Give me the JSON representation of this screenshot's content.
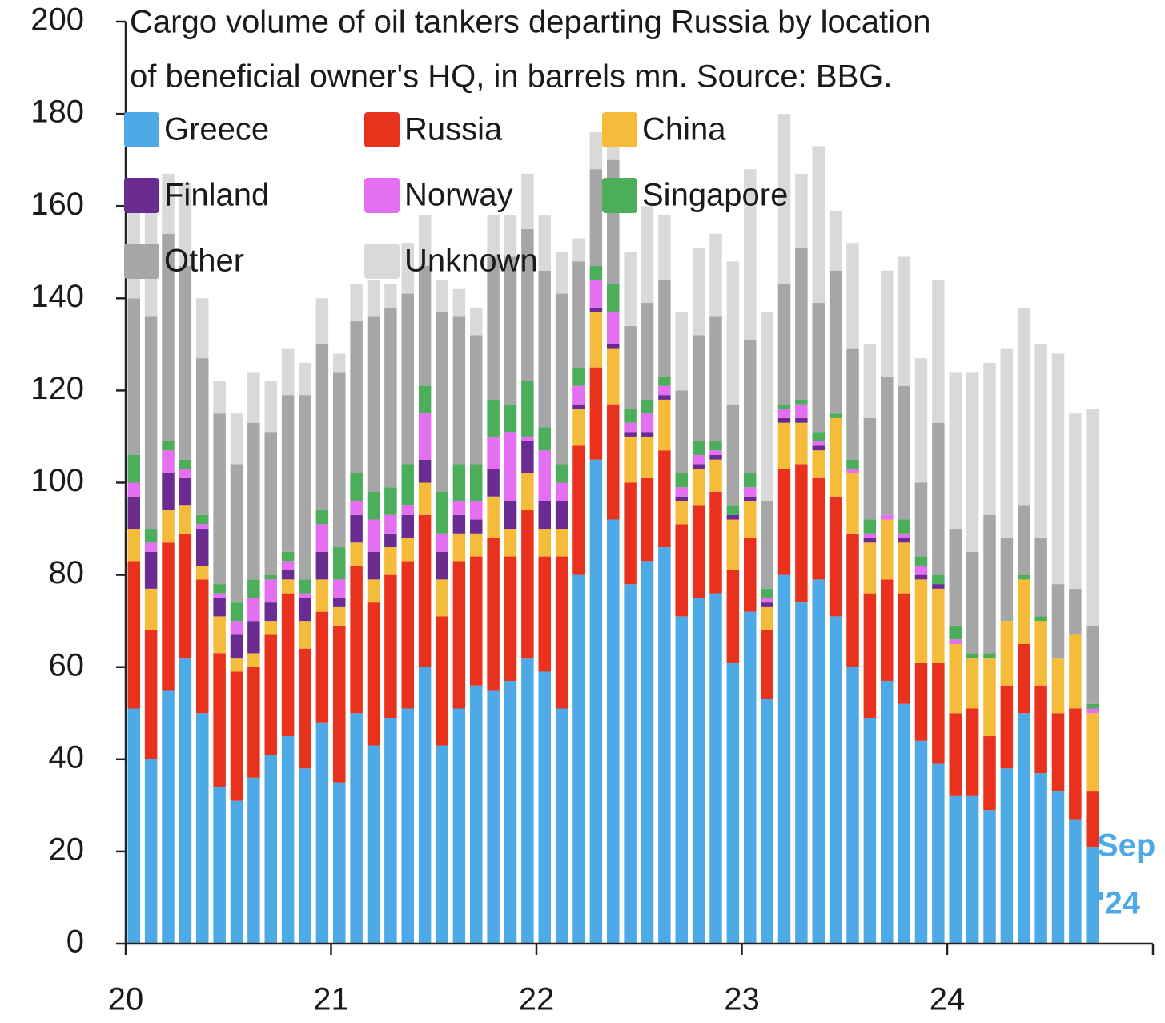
{
  "chart_data": {
    "type": "stacked_bar",
    "title": [
      "Cargo volume of oil tankers departing Russia by location",
      "of beneficial owner's HQ, in barrels mn. Source: BBG."
    ],
    "annotation": [
      "Sep",
      "'24"
    ],
    "categories": [
      "20",
      null,
      null,
      null,
      null,
      null,
      null,
      null,
      null,
      null,
      null,
      null,
      "21",
      null,
      null,
      null,
      null,
      null,
      null,
      null,
      null,
      null,
      null,
      null,
      "22",
      null,
      null,
      null,
      null,
      null,
      null,
      null,
      null,
      null,
      null,
      null,
      "23",
      null,
      null,
      null,
      null,
      null,
      null,
      null,
      null,
      null,
      null,
      null,
      "24",
      null,
      null,
      null,
      null,
      null,
      null,
      null,
      null
    ],
    "ylim": [
      0,
      200
    ],
    "yticks": [
      0,
      20,
      40,
      60,
      80,
      100,
      120,
      140,
      160,
      180,
      200
    ],
    "grid": false,
    "legend": "top-left",
    "series": [
      {
        "name": "Greece",
        "color": "#4eaae6",
        "values": [
          51,
          40,
          55,
          62,
          50,
          34,
          31,
          36,
          41,
          45,
          38,
          48,
          35,
          50,
          43,
          49,
          51,
          60,
          43,
          51,
          56,
          55,
          57,
          62,
          59,
          51,
          80,
          105,
          92,
          78,
          83,
          86,
          71,
          75,
          76,
          61,
          72,
          53,
          80,
          74,
          79,
          71,
          60,
          49,
          57,
          52,
          44,
          39,
          32,
          32,
          29,
          38,
          50,
          37,
          33,
          27,
          21
        ]
      },
      {
        "name": "Russia",
        "color": "#e8321e",
        "values": [
          32,
          28,
          32,
          27,
          29,
          29,
          28,
          24,
          26,
          31,
          26,
          24,
          34,
          32,
          31,
          31,
          32,
          33,
          28,
          32,
          28,
          33,
          27,
          32,
          25,
          33,
          28,
          20,
          25,
          22,
          18,
          21,
          20,
          20,
          22,
          20,
          16,
          15,
          23,
          30,
          22,
          26,
          29,
          27,
          22,
          24,
          17,
          22,
          18,
          19,
          16,
          18,
          15,
          19,
          17,
          24,
          12
        ]
      },
      {
        "name": "China",
        "color": "#f5bc3c",
        "values": [
          7,
          9,
          7,
          6,
          3,
          8,
          3,
          3,
          3,
          3,
          6,
          7,
          4,
          5,
          5,
          6,
          5,
          7,
          8,
          6,
          5,
          9,
          6,
          8,
          6,
          6,
          8,
          12,
          12,
          10,
          9,
          11,
          5,
          8,
          7,
          11,
          8,
          5,
          10,
          9,
          6,
          17,
          13,
          11,
          13,
          11,
          18,
          16,
          15,
          11,
          17,
          14,
          14,
          14,
          12,
          16,
          17
        ]
      },
      {
        "name": "Finland",
        "color": "#6a2c91",
        "values": [
          7,
          8,
          8,
          6,
          8,
          4,
          5,
          7,
          4,
          2,
          5,
          6,
          2,
          6,
          6,
          3,
          5,
          5,
          6,
          4,
          3,
          6,
          6,
          7,
          6,
          6,
          1,
          1,
          1,
          1,
          1,
          1,
          1,
          1,
          1,
          1,
          1,
          1,
          1,
          1,
          1,
          0,
          0,
          1,
          0,
          1,
          1,
          1,
          0,
          0,
          0,
          0,
          0,
          0,
          0,
          0,
          0
        ]
      },
      {
        "name": "Norway",
        "color": "#e46ff0",
        "values": [
          3,
          2,
          5,
          2,
          1,
          1,
          3,
          5,
          5,
          2,
          1,
          6,
          4,
          3,
          7,
          4,
          2,
          10,
          4,
          3,
          4,
          7,
          15,
          1,
          11,
          4,
          4,
          6,
          7,
          2,
          4,
          2,
          2,
          2,
          1,
          0,
          2,
          1,
          2,
          3,
          1,
          0,
          1,
          1,
          1,
          1,
          2,
          0,
          1,
          0,
          0,
          0,
          0,
          0,
          0,
          0,
          1
        ]
      },
      {
        "name": "Singapore",
        "color": "#4cad5a",
        "values": [
          6,
          3,
          2,
          2,
          2,
          2,
          4,
          4,
          1,
          2,
          3,
          3,
          7,
          6,
          6,
          6,
          9,
          6,
          9,
          8,
          8,
          8,
          6,
          12,
          5,
          4,
          4,
          3,
          6,
          3,
          3,
          2,
          3,
          3,
          2,
          2,
          3,
          2,
          1,
          1,
          2,
          1,
          2,
          3,
          0,
          3,
          2,
          2,
          3,
          1,
          1,
          0,
          1,
          1,
          0,
          0,
          1
        ]
      },
      {
        "name": "Other",
        "color": "#a6a6a6",
        "values": [
          34,
          46,
          45,
          42,
          34,
          37,
          30,
          34,
          31,
          34,
          40,
          36,
          38,
          33,
          38,
          39,
          37,
          26,
          39,
          32,
          28,
          31,
          32,
          33,
          34,
          37,
          23,
          21,
          27,
          18,
          21,
          21,
          18,
          23,
          27,
          22,
          29,
          19,
          26,
          33,
          28,
          31,
          24,
          22,
          30,
          29,
          16,
          33,
          21,
          22,
          30,
          18,
          15,
          17,
          16,
          10,
          17
        ]
      },
      {
        "name": "Unknown",
        "color": "#d9d9d9",
        "values": [
          23,
          29,
          13,
          18,
          13,
          7,
          11,
          11,
          11,
          10,
          7,
          10,
          4,
          8,
          8,
          5,
          11,
          11,
          7,
          6,
          6,
          9,
          9,
          12,
          12,
          9,
          5,
          8,
          10,
          16,
          21,
          14,
          17,
          19,
          18,
          31,
          37,
          41,
          37,
          16,
          34,
          13,
          23,
          16,
          23,
          28,
          27,
          31,
          34,
          39,
          33,
          41,
          43,
          42,
          50,
          38,
          47
        ]
      }
    ]
  }
}
